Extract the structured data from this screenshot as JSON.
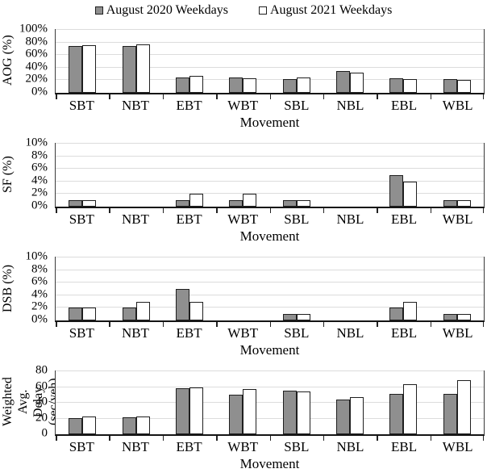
{
  "legend": {
    "items": [
      {
        "label": "August 2020 Weekdays",
        "fill": "#8f8f8f"
      },
      {
        "label": "August 2021 Weekdays",
        "fill": "#ffffff"
      }
    ]
  },
  "colors": {
    "bar_2020": "#8f8f8f",
    "bar_2021": "#ffffff",
    "bar_border": "#1f1f1f",
    "gridline": "#dcdcdc",
    "axis": "#151515"
  },
  "chart_data": [
    {
      "type": "bar",
      "ylabel_lines": [
        "AOG (%)"
      ],
      "xlabel": "Movement",
      "ylim": [
        0,
        100
      ],
      "yticks": [
        0,
        20,
        40,
        60,
        80,
        100
      ],
      "ytick_suffix": "%",
      "grid": true,
      "legend_position": "top",
      "categories": [
        "SBT",
        "NBT",
        "EBT",
        "WBT",
        "SBL",
        "NBL",
        "EBL",
        "WBL"
      ],
      "series": [
        {
          "name": "August 2020 Weekdays",
          "values": [
            75,
            75,
            24,
            25,
            22,
            34,
            23,
            22
          ]
        },
        {
          "name": "August 2021 Weekdays",
          "values": [
            76,
            77,
            27,
            23,
            24,
            32,
            22,
            21
          ]
        }
      ]
    },
    {
      "type": "bar",
      "ylabel_lines": [
        "SF (%)"
      ],
      "xlabel": "Movement",
      "ylim": [
        0,
        10
      ],
      "yticks": [
        0,
        2,
        4,
        6,
        8,
        10
      ],
      "ytick_suffix": "%",
      "grid": true,
      "categories": [
        "SBT",
        "NBT",
        "EBT",
        "WBT",
        "SBL",
        "NBL",
        "EBL",
        "WBL"
      ],
      "series": [
        {
          "name": "August 2020 Weekdays",
          "values": [
            1,
            0,
            1,
            1,
            1,
            0,
            5,
            1
          ]
        },
        {
          "name": "August 2021 Weekdays",
          "values": [
            1,
            0,
            2,
            2,
            1,
            0,
            4,
            1
          ]
        }
      ]
    },
    {
      "type": "bar",
      "ylabel_lines": [
        "DSB (%)"
      ],
      "xlabel": "Movement",
      "ylim": [
        0,
        10
      ],
      "yticks": [
        0,
        2,
        4,
        6,
        8,
        10
      ],
      "ytick_suffix": "%",
      "grid": true,
      "categories": [
        "SBT",
        "NBT",
        "EBT",
        "WBT",
        "SBL",
        "NBL",
        "EBL",
        "WBL"
      ],
      "series": [
        {
          "name": "August 2020 Weekdays",
          "values": [
            2,
            2,
            5,
            0,
            1,
            0,
            2,
            1
          ]
        },
        {
          "name": "August 2021 Weekdays",
          "values": [
            2,
            3,
            3,
            0,
            1,
            0,
            3,
            1
          ]
        }
      ]
    },
    {
      "type": "bar",
      "ylabel_lines": [
        "Weighted Avg.",
        "Delay (sec/veh)"
      ],
      "xlabel": "Movement",
      "ylim": [
        0,
        80
      ],
      "yticks": [
        0,
        20,
        40,
        60,
        80
      ],
      "ytick_suffix": "",
      "grid": true,
      "categories": [
        "SBT",
        "NBT",
        "EBT",
        "WBT",
        "SBL",
        "NBL",
        "EBL",
        "WBL"
      ],
      "series": [
        {
          "name": "August 2020 Weekdays",
          "values": [
            21,
            22,
            58,
            50,
            55,
            44,
            51,
            51
          ]
        },
        {
          "name": "August 2021 Weekdays",
          "values": [
            23,
            23,
            60,
            57,
            54,
            47,
            64,
            69
          ]
        }
      ]
    }
  ]
}
